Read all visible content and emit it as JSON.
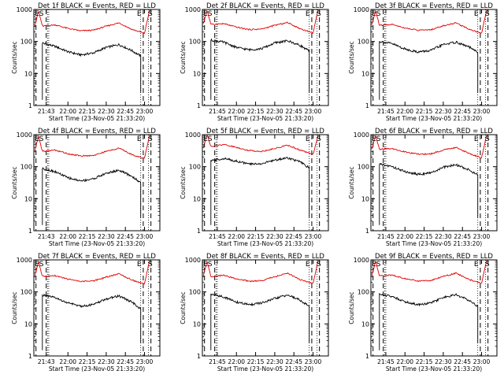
{
  "figure": {
    "xlabel": "Start Time (23-Nov-05 21:33:20)",
    "ylabel": "Counts/sec",
    "series_colors": {
      "events": "#000000",
      "lld": "#e00000"
    },
    "marker_labels": {
      "left": "ES",
      "right_e": "E",
      "right_s": "S"
    }
  },
  "chart_data": [
    {
      "type": "line",
      "title": "Det 1f BLACK = Events, RED = LLD",
      "ylog": true,
      "ylim": [
        1,
        1000
      ],
      "yticks": [
        "1",
        "10",
        "100",
        "1000"
      ],
      "xticks": [
        "21:43",
        "22:00",
        "22:15",
        "22:30",
        "22:45",
        "23:00"
      ],
      "xlim": [
        "21:33:20",
        "23:12:00"
      ],
      "series": [
        {
          "color": "#000000",
          "x": [
            "21:40",
            "21:50",
            "22:00",
            "22:10",
            "22:20",
            "22:30",
            "22:40",
            "22:50",
            "22:57"
          ],
          "values": [
            90,
            70,
            48,
            38,
            44,
            65,
            80,
            52,
            35
          ]
        },
        {
          "color": "#e00000",
          "x": [
            "21:34",
            "21:37",
            "21:40",
            "21:50",
            "22:00",
            "22:10",
            "22:20",
            "22:30",
            "22:40",
            "22:50",
            "23:00",
            "23:04"
          ],
          "values": [
            300,
            900,
            300,
            330,
            255,
            215,
            225,
            300,
            380,
            240,
            180,
            1000
          ]
        }
      ]
    },
    {
      "type": "line",
      "title": "Det 2f BLACK = Events, RED = LLD",
      "ylog": true,
      "ylim": [
        1,
        1000
      ],
      "yticks": [
        "1",
        "10",
        "100",
        "1000"
      ],
      "xticks": [
        "21:45",
        "22:00",
        "22:15",
        "22:30",
        "22:45",
        "23:00"
      ],
      "xlim": [
        "21:33:20",
        "23:12:00"
      ],
      "series": [
        {
          "color": "#000000",
          "x": [
            "21:40",
            "21:50",
            "22:00",
            "22:10",
            "22:20",
            "22:30",
            "22:40",
            "22:50",
            "22:57"
          ],
          "values": [
            110,
            95,
            65,
            55,
            60,
            90,
            105,
            75,
            50
          ]
        },
        {
          "color": "#e00000",
          "x": [
            "21:34",
            "21:37",
            "21:40",
            "21:50",
            "22:00",
            "22:10",
            "22:20",
            "22:30",
            "22:40",
            "22:50",
            "23:00",
            "23:04"
          ],
          "values": [
            350,
            950,
            340,
            360,
            280,
            235,
            245,
            320,
            390,
            250,
            185,
            1000
          ]
        }
      ]
    },
    {
      "type": "line",
      "title": "Det 3f BLACK = Events, RED = LLD",
      "ylog": true,
      "ylim": [
        1,
        1000
      ],
      "yticks": [
        "1",
        "10",
        "100",
        "1000"
      ],
      "xticks": [
        "21:45",
        "22:00",
        "22:15",
        "22:30",
        "22:45",
        "23:00"
      ],
      "xlim": [
        "21:33:20",
        "23:12:00"
      ],
      "series": [
        {
          "color": "#000000",
          "x": [
            "21:40",
            "21:50",
            "22:00",
            "22:10",
            "22:20",
            "22:30",
            "22:40",
            "22:50",
            "22:57"
          ],
          "values": [
            100,
            85,
            58,
            47,
            52,
            80,
            95,
            68,
            45
          ]
        },
        {
          "color": "#e00000",
          "x": [
            "21:34",
            "21:37",
            "21:40",
            "21:50",
            "22:00",
            "22:10",
            "22:20",
            "22:30",
            "22:40",
            "22:50",
            "23:00",
            "23:04"
          ],
          "values": [
            320,
            920,
            320,
            340,
            265,
            225,
            230,
            310,
            380,
            245,
            180,
            1000
          ]
        }
      ]
    },
    {
      "type": "line",
      "title": "Det 4f BLACK = Events, RED = LLD",
      "ylog": true,
      "ylim": [
        1,
        1000
      ],
      "yticks": [
        "1",
        "10",
        "100",
        "1000"
      ],
      "xticks": [
        "21:43",
        "22:00",
        "22:15",
        "22:30",
        "22:45",
        "23:00"
      ],
      "xlim": [
        "21:33:20",
        "23:12:00"
      ],
      "series": [
        {
          "color": "#000000",
          "x": [
            "21:40",
            "21:50",
            "22:00",
            "22:10",
            "22:20",
            "22:30",
            "22:40",
            "22:50",
            "22:57"
          ],
          "values": [
            88,
            70,
            45,
            36,
            42,
            62,
            78,
            50,
            32
          ]
        },
        {
          "color": "#e00000",
          "x": [
            "21:34",
            "21:37",
            "21:40",
            "21:50",
            "22:00",
            "22:10",
            "22:20",
            "22:30",
            "22:40",
            "22:50",
            "23:00",
            "23:04"
          ],
          "values": [
            300,
            900,
            300,
            330,
            255,
            215,
            225,
            300,
            380,
            240,
            180,
            1000
          ]
        }
      ]
    },
    {
      "type": "line",
      "title": "Det 5f BLACK = Events, RED = LLD",
      "ylog": true,
      "ylim": [
        1,
        1000
      ],
      "yticks": [
        "1",
        "10",
        "100",
        "1000"
      ],
      "xticks": [
        "21:45",
        "22:00",
        "22:15",
        "22:30",
        "22:45",
        "23:00"
      ],
      "xlim": [
        "21:33:20",
        "23:12:00"
      ],
      "series": [
        {
          "color": "#000000",
          "x": [
            "21:40",
            "21:50",
            "22:00",
            "22:10",
            "22:20",
            "22:30",
            "22:40",
            "22:50",
            "22:57"
          ],
          "values": [
            150,
            180,
            150,
            120,
            125,
            160,
            190,
            140,
            90
          ]
        },
        {
          "color": "#e00000",
          "x": [
            "21:34",
            "21:37",
            "21:40",
            "21:50",
            "22:00",
            "22:10",
            "22:20",
            "22:30",
            "22:40",
            "22:50",
            "23:00",
            "23:04"
          ],
          "values": [
            400,
            1000,
            420,
            500,
            400,
            320,
            300,
            370,
            470,
            330,
            240,
            1000
          ]
        }
      ]
    },
    {
      "type": "line",
      "title": "Det 6f BLACK = Events, RED = LLD",
      "ylog": true,
      "ylim": [
        1,
        1000
      ],
      "yticks": [
        "1",
        "10",
        "100",
        "1000"
      ],
      "xticks": [
        "21:45",
        "22:00",
        "22:15",
        "22:30",
        "22:45",
        "23:00"
      ],
      "xlim": [
        "21:33:20",
        "23:12:00"
      ],
      "series": [
        {
          "color": "#000000",
          "x": [
            "21:40",
            "21:50",
            "22:00",
            "22:10",
            "22:20",
            "22:30",
            "22:40",
            "22:50",
            "22:57"
          ],
          "values": [
            120,
            100,
            70,
            58,
            63,
            95,
            115,
            80,
            55
          ]
        },
        {
          "color": "#e00000",
          "x": [
            "21:34",
            "21:37",
            "21:40",
            "21:50",
            "22:00",
            "22:10",
            "22:20",
            "22:30",
            "22:40",
            "22:50",
            "23:00",
            "23:04"
          ],
          "values": [
            350,
            950,
            350,
            370,
            290,
            245,
            250,
            330,
            400,
            260,
            190,
            1000
          ]
        }
      ]
    },
    {
      "type": "line",
      "title": "Det 7f BLACK = Events, RED = LLD",
      "ylog": true,
      "ylim": [
        1,
        1000
      ],
      "yticks": [
        "1",
        "10",
        "100",
        "1000"
      ],
      "xticks": [
        "21:43",
        "22:00",
        "22:15",
        "22:30",
        "22:45",
        "23:00"
      ],
      "xlim": [
        "21:33:20",
        "23:12:00"
      ],
      "series": [
        {
          "color": "#000000",
          "x": [
            "21:40",
            "21:50",
            "22:00",
            "22:10",
            "22:20",
            "22:30",
            "22:40",
            "22:50",
            "22:57"
          ],
          "values": [
            80,
            65,
            45,
            36,
            40,
            60,
            75,
            48,
            30
          ]
        },
        {
          "color": "#e00000",
          "x": [
            "21:34",
            "21:37",
            "21:40",
            "21:50",
            "22:00",
            "22:10",
            "22:20",
            "22:30",
            "22:40",
            "22:50",
            "23:00",
            "23:04"
          ],
          "values": [
            300,
            900,
            300,
            320,
            250,
            210,
            220,
            290,
            370,
            235,
            175,
            1000
          ]
        }
      ]
    },
    {
      "type": "line",
      "title": "Det 8f BLACK = Events, RED = LLD",
      "ylog": true,
      "ylim": [
        1,
        1000
      ],
      "yticks": [
        "1",
        "10",
        "100",
        "1000"
      ],
      "xticks": [
        "21:45",
        "22:00",
        "22:15",
        "22:30",
        "22:45",
        "23:00"
      ],
      "xlim": [
        "21:33:20",
        "23:12:00"
      ],
      "series": [
        {
          "color": "#000000",
          "x": [
            "21:40",
            "21:50",
            "22:00",
            "22:10",
            "22:20",
            "22:30",
            "22:40",
            "22:50",
            "22:57"
          ],
          "values": [
            85,
            70,
            48,
            40,
            45,
            62,
            80,
            55,
            35
          ]
        },
        {
          "color": "#e00000",
          "x": [
            "21:34",
            "21:37",
            "21:40",
            "21:50",
            "22:00",
            "22:10",
            "22:20",
            "22:30",
            "22:40",
            "22:50",
            "23:00",
            "23:04"
          ],
          "values": [
            300,
            900,
            300,
            330,
            255,
            215,
            225,
            300,
            380,
            240,
            180,
            1000
          ]
        }
      ]
    },
    {
      "type": "line",
      "title": "Det 9f BLACK = Events, RED = LLD",
      "ylog": true,
      "ylim": [
        1,
        1000
      ],
      "yticks": [
        "1",
        "10",
        "100",
        "1000"
      ],
      "xticks": [
        "21:45",
        "22:00",
        "22:15",
        "22:30",
        "22:45",
        "23:00"
      ],
      "xlim": [
        "21:33:20",
        "23:12:00"
      ],
      "series": [
        {
          "color": "#000000",
          "x": [
            "21:40",
            "21:50",
            "22:00",
            "22:10",
            "22:20",
            "22:30",
            "22:40",
            "22:50",
            "22:57"
          ],
          "values": [
            85,
            72,
            50,
            40,
            45,
            66,
            82,
            55,
            36
          ]
        },
        {
          "color": "#e00000",
          "x": [
            "21:34",
            "21:37",
            "21:40",
            "21:50",
            "22:00",
            "22:10",
            "22:20",
            "22:30",
            "22:40",
            "22:50",
            "23:00",
            "23:04"
          ],
          "values": [
            310,
            910,
            310,
            335,
            260,
            220,
            228,
            305,
            385,
            245,
            182,
            1000
          ]
        }
      ]
    }
  ]
}
